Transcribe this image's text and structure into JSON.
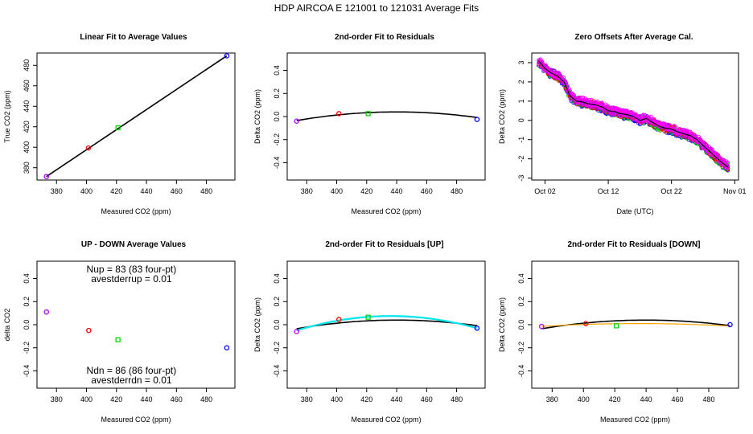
{
  "figure": {
    "title": "HDP    AIRCOA E   121001 to 121031   Average Fits"
  },
  "colors": {
    "red": "#ff0000",
    "green": "#00cc00",
    "blue": "#0000ff",
    "purple": "#aa00ff",
    "magenta": "#ff00ff",
    "black": "#000000",
    "cyan": "#00e5ee",
    "orange": "#ffa500"
  },
  "chart_data": [
    {
      "id": "p1",
      "type": "scatter",
      "title": "Linear Fit to Average Values",
      "xlabel": "Measured CO2 (ppm)",
      "ylabel": "True CO2 (ppm)",
      "xlim": [
        367,
        499
      ],
      "ylim": [
        368,
        492
      ],
      "xticks": [
        380,
        400,
        420,
        440,
        460,
        480
      ],
      "yticks": [
        380,
        400,
        420,
        440,
        460,
        480
      ],
      "points": [
        {
          "x": 373.3,
          "y": 371.4,
          "color": "purple"
        },
        {
          "x": 401.3,
          "y": 399.3,
          "color": "red"
        },
        {
          "x": 421.0,
          "y": 419.0,
          "color": "green"
        },
        {
          "x": 493.6,
          "y": 489.3,
          "color": "blue"
        }
      ],
      "lines": [
        {
          "color": "black",
          "width": 1.6,
          "points": [
            [
              373.3,
              371.4
            ],
            [
              493.6,
              489.3
            ]
          ]
        }
      ]
    },
    {
      "id": "p2",
      "type": "scatter",
      "title": "2nd-order Fit to Residuals",
      "xlabel": "Measured CO2 (ppm)",
      "ylabel": "Delta CO2 (ppm)",
      "xlim": [
        367,
        499
      ],
      "ylim": [
        -0.55,
        0.55
      ],
      "xticks": [
        380,
        400,
        420,
        440,
        460,
        480
      ],
      "yticks": [
        -0.4,
        -0.2,
        0.0,
        0.2,
        0.4
      ],
      "ytick_labels": [
        "-0.4",
        "-0.2",
        "0.0",
        "0.2",
        "0.4"
      ],
      "points": [
        {
          "x": 373.3,
          "y": -0.04,
          "color": "purple"
        },
        {
          "x": 401.5,
          "y": 0.025,
          "color": "red"
        },
        {
          "x": 421.0,
          "y": 0.025,
          "color": "green"
        },
        {
          "x": 493.6,
          "y": -0.025,
          "color": "blue"
        }
      ],
      "curves": [
        {
          "color": "black",
          "width": 1.6,
          "x0": 373.3,
          "x1": 493.6,
          "vertex_x": 440,
          "peak": 0.04,
          "end_y": -0.035
        }
      ]
    },
    {
      "id": "p3",
      "type": "line",
      "title": "Zero Offsets After Average Cal.",
      "xlabel": "Date (UTC)",
      "ylabel": "Delta CO2 (ppm)",
      "xlim": [
        -1.1,
        31.6
      ],
      "ylim": [
        -3.1,
        3.5
      ],
      "xticks": [
        1,
        11,
        21,
        31
      ],
      "xtick_labels": [
        "Oct 02",
        "Oct 12",
        "Oct 22",
        "Nov 01"
      ],
      "yticks": [
        -3,
        -2,
        -1,
        0,
        1,
        2,
        3
      ],
      "ytick_labels": [
        "-3",
        "-2",
        "-1",
        "0",
        "1",
        "2",
        "3"
      ],
      "trend_day": [
        0,
        1,
        2,
        3,
        4,
        5,
        6,
        7,
        8,
        9,
        10,
        11,
        12,
        13,
        14,
        15,
        16,
        17,
        18,
        19,
        20,
        21,
        22,
        23,
        24,
        25,
        26,
        27,
        28,
        29,
        30
      ],
      "trend_value": [
        3.1,
        2.7,
        2.45,
        2.3,
        2.0,
        1.25,
        1.0,
        0.95,
        0.85,
        0.8,
        0.7,
        0.5,
        0.45,
        0.35,
        0.3,
        0.2,
        0.0,
        0.1,
        -0.1,
        -0.3,
        -0.4,
        -0.45,
        -0.6,
        -0.7,
        -0.8,
        -1.0,
        -1.3,
        -1.6,
        -1.9,
        -2.2,
        -2.45
      ],
      "series_colors": [
        "blue",
        "green",
        "red",
        "purple",
        "magenta"
      ],
      "scatter_spread": 0.18
    },
    {
      "id": "p4",
      "type": "scatter",
      "title": "UP - DOWN Average Values",
      "xlabel": "Measured CO2 (ppm)",
      "ylabel": "delta CO2",
      "xlim": [
        367,
        499
      ],
      "ylim": [
        -0.55,
        0.55
      ],
      "xticks": [
        380,
        400,
        420,
        440,
        460,
        480
      ],
      "yticks": [
        -0.4,
        -0.2,
        0.0,
        0.2,
        0.4
      ],
      "ytick_labels": [
        "-0.4",
        "-0.2",
        "0.0",
        "0.2",
        "0.4"
      ],
      "points": [
        {
          "x": 373.3,
          "y": 0.11,
          "color": "purple"
        },
        {
          "x": 401.5,
          "y": -0.05,
          "color": "red"
        },
        {
          "x": 421.0,
          "y": -0.13,
          "color": "green"
        },
        {
          "x": 493.6,
          "y": -0.2,
          "color": "blue"
        }
      ],
      "annotations": {
        "nup": "Nup = 83 (83 four-pt)",
        "avestderrup": "avestderrup =  0.01",
        "ndn": "Ndn = 86 (86 four-pt)",
        "avestderrdn": "avestderrdn =  0.01"
      }
    },
    {
      "id": "p5",
      "type": "scatter",
      "title": "2nd-order Fit to Residuals [UP]",
      "xlabel": "Measured CO2 (ppm)",
      "ylabel": "Delta CO2 (ppm)",
      "xlim": [
        367,
        499
      ],
      "ylim": [
        -0.55,
        0.55
      ],
      "xticks": [
        380,
        400,
        420,
        440,
        460,
        480
      ],
      "yticks": [
        -0.4,
        -0.2,
        0.0,
        0.2,
        0.4
      ],
      "ytick_labels": [
        "-0.4",
        "-0.2",
        "0.0",
        "0.2",
        "0.4"
      ],
      "points": [
        {
          "x": 373.3,
          "y": -0.06,
          "color": "purple"
        },
        {
          "x": 401.5,
          "y": 0.045,
          "color": "red"
        },
        {
          "x": 421.0,
          "y": 0.065,
          "color": "green"
        },
        {
          "x": 493.6,
          "y": -0.03,
          "color": "blue"
        }
      ],
      "curves": [
        {
          "color": "black",
          "width": 1.6,
          "x0": 373.3,
          "x1": 493.6,
          "vertex_x": 440,
          "peak": 0.04,
          "end_y": -0.035
        },
        {
          "color": "cyan",
          "width": 2.2,
          "x0": 373.3,
          "x1": 493.6,
          "vertex_x": 436,
          "peak": 0.075,
          "end_y": -0.05
        }
      ]
    },
    {
      "id": "p6",
      "type": "scatter",
      "title": "2nd-order Fit to Residuals [DOWN]",
      "xlabel": "Measured CO2 (ppm)",
      "ylabel": "Delta CO2 (ppm)",
      "xlim": [
        367,
        499
      ],
      "ylim": [
        -0.55,
        0.55
      ],
      "xticks": [
        380,
        400,
        420,
        440,
        460,
        480
      ],
      "yticks": [
        -0.4,
        -0.2,
        0.0,
        0.2,
        0.4
      ],
      "ytick_labels": [
        "-0.4",
        "-0.2",
        "0.0",
        "0.2",
        "0.4"
      ],
      "points": [
        {
          "x": 373.3,
          "y": -0.015,
          "color": "purple"
        },
        {
          "x": 401.5,
          "y": 0.01,
          "color": "red"
        },
        {
          "x": 421.0,
          "y": -0.01,
          "color": "green"
        },
        {
          "x": 493.6,
          "y": 0.0,
          "color": "blue"
        }
      ],
      "curves": [
        {
          "color": "black",
          "width": 1.6,
          "x0": 373.3,
          "x1": 493.6,
          "vertex_x": 440,
          "peak": 0.04,
          "end_y": -0.035
        },
        {
          "color": "orange",
          "width": 1.2,
          "x0": 373.3,
          "x1": 493.6,
          "vertex_x": 435,
          "peak": 0.01,
          "end_y": -0.015
        }
      ]
    }
  ]
}
